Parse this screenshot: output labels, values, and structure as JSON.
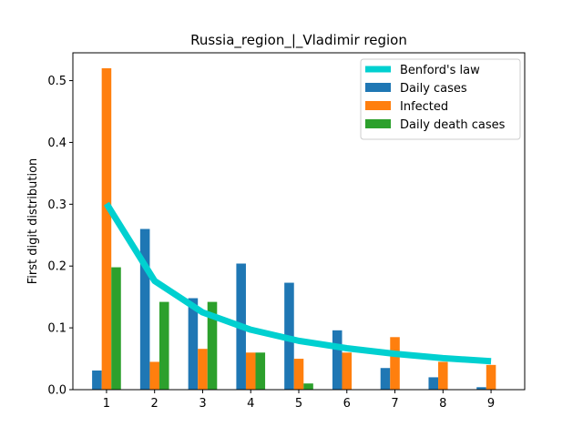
{
  "chart_data": {
    "type": "bar",
    "title": "Russia_region_|_Vladimir region",
    "xlabel": "",
    "ylabel": "First digit distribution",
    "categories": [
      "1",
      "2",
      "3",
      "4",
      "5",
      "6",
      "7",
      "8",
      "9"
    ],
    "ylim": [
      0,
      0.545
    ],
    "yticks": [
      "0.0",
      "0.1",
      "0.2",
      "0.3",
      "0.4",
      "0.5"
    ],
    "grid": false,
    "legend_position": "top-right",
    "series": [
      {
        "name": "Daily cases",
        "kind": "bar",
        "color": "#1f77b4",
        "values": [
          0.031,
          0.26,
          0.148,
          0.204,
          0.173,
          0.096,
          0.035,
          0.02,
          0.004
        ]
      },
      {
        "name": "Infected",
        "kind": "bar",
        "color": "#ff7f0e",
        "values": [
          0.52,
          0.045,
          0.066,
          0.06,
          0.05,
          0.06,
          0.085,
          0.045,
          0.04
        ]
      },
      {
        "name": "Daily death cases",
        "kind": "bar",
        "color": "#2ca02c",
        "values": [
          0.198,
          0.142,
          0.142,
          0.06,
          0.01,
          0.0,
          0.0,
          0.0,
          0.0
        ]
      }
    ],
    "benford": {
      "name": "Benford's law",
      "kind": "line",
      "color": "#00d0d0",
      "values": [
        0.301,
        0.176,
        0.125,
        0.097,
        0.079,
        0.067,
        0.058,
        0.051,
        0.046
      ]
    },
    "legend_order": [
      "Benford's law",
      "Daily cases",
      "Infected",
      "Daily death cases"
    ]
  }
}
